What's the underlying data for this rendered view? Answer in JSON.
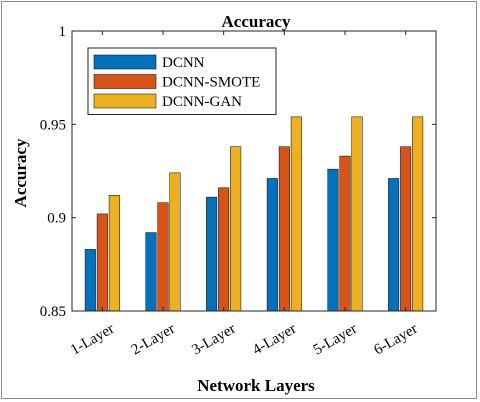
{
  "chart_data": {
    "type": "bar",
    "title": "Accuracy",
    "xlabel": "Network Layers",
    "ylabel": "Accuracy",
    "ylim": [
      0.85,
      1
    ],
    "yticks": [
      "0.85",
      "0.9",
      "0.95",
      "1"
    ],
    "grid": false,
    "legend_position": "top-left",
    "categories": [
      "1-Layer",
      "2-Layer",
      "3-Layer",
      "4-Layer",
      "5-Layer",
      "6-Layer"
    ],
    "series": [
      {
        "name": "DCNN",
        "color": "#0072BD",
        "values": [
          0.883,
          0.892,
          0.911,
          0.921,
          0.926,
          0.921
        ]
      },
      {
        "name": "DCNN-SMOTE",
        "color": "#D95319",
        "values": [
          0.902,
          0.908,
          0.916,
          0.938,
          0.933,
          0.938
        ]
      },
      {
        "name": "DCNN-GAN",
        "color": "#EDB120",
        "values": [
          0.912,
          0.924,
          0.938,
          0.954,
          0.954,
          0.954
        ]
      }
    ]
  }
}
